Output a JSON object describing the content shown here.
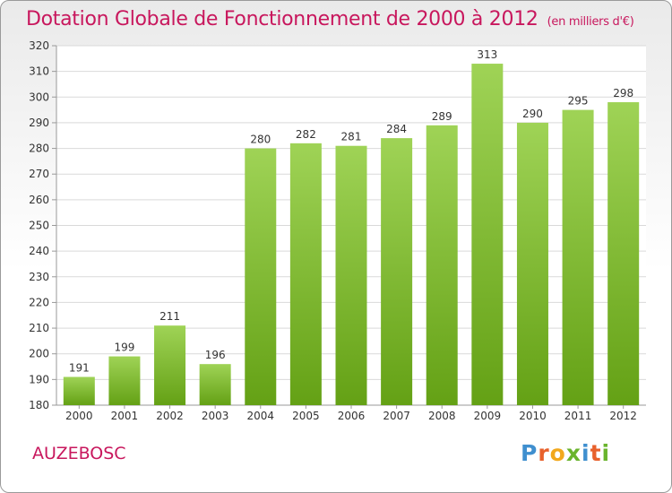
{
  "chart_data": {
    "type": "bar",
    "title": "Dotation Globale de Fonctionnement de 2000 à 2012",
    "subtitle": "(en milliers d'€)",
    "categories": [
      "2000",
      "2001",
      "2002",
      "2003",
      "2004",
      "2005",
      "2006",
      "2007",
      "2008",
      "2009",
      "2010",
      "2011",
      "2012"
    ],
    "values": [
      191,
      199,
      211,
      196,
      280,
      282,
      281,
      284,
      289,
      313,
      290,
      295,
      298
    ],
    "ylim": [
      180,
      320
    ],
    "ytick_step": 10,
    "grid": true,
    "bar_color": "#7ab531"
  },
  "footer": {
    "commune": "AUZEBOSC",
    "logo_letters": [
      "P",
      "r",
      "o",
      "x",
      "i",
      "t",
      "i"
    ],
    "logo_colors": [
      "#3f8fcf",
      "#e8612c",
      "#f2a81d",
      "#6ab42d",
      "#3f8fcf",
      "#e8612c",
      "#6ab42d"
    ]
  }
}
